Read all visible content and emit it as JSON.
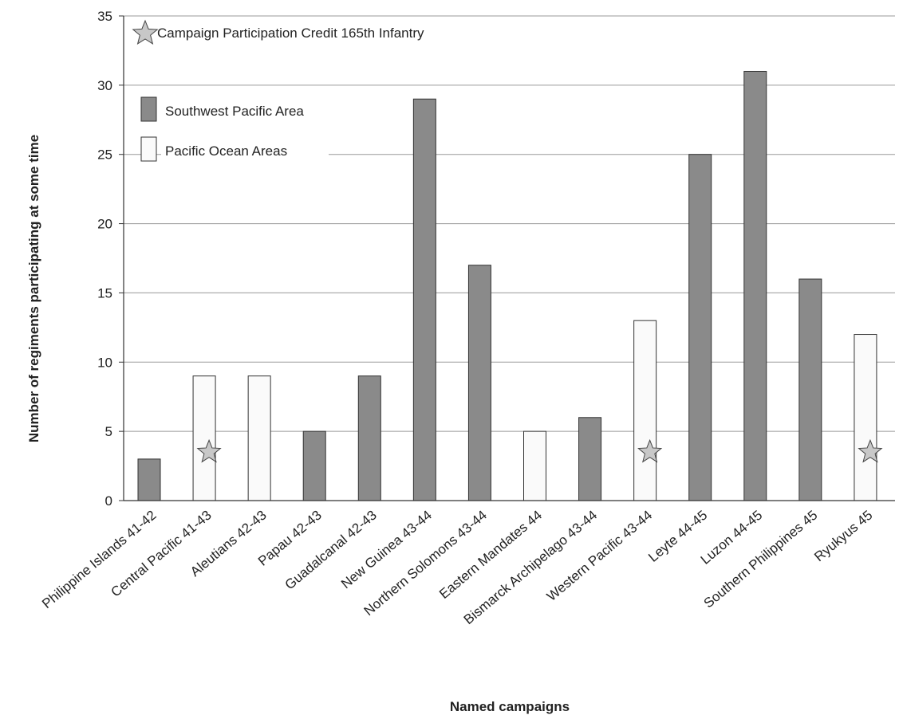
{
  "chart_data": {
    "type": "bar",
    "title": "",
    "xlabel": "Named campaigns",
    "ylabel": "Number of regiments participating at some time",
    "ylim": [
      0,
      35
    ],
    "yticks": [
      0,
      5,
      10,
      15,
      20,
      25,
      30,
      35
    ],
    "grid": true,
    "legend_position": "top-left",
    "categories": [
      "Philippine Islands 41-42",
      "Central Pacific 41-43",
      "Aleutians 42-43",
      "Papau 42-43",
      "Guadalcanal 42-43",
      "New Guinea 43-44",
      "Northern Solomons 43-44",
      "Eastern Mandates 44",
      "Bismarck Archipelago 43-44",
      "Western Pacific 43-44",
      "Leyte 44-45",
      "Luzon 44-45",
      "Southern Philippines 45",
      "Ryukyus 45"
    ],
    "values": [
      3,
      9,
      9,
      5,
      9,
      29,
      17,
      5,
      6,
      13,
      25,
      31,
      16,
      12
    ],
    "area": [
      "Southwest Pacific Area",
      "Pacific Ocean Areas",
      "Pacific Ocean Areas",
      "Southwest Pacific Area",
      "Southwest Pacific Area",
      "Southwest Pacific Area",
      "Southwest Pacific Area",
      "Pacific Ocean Areas",
      "Southwest Pacific Area",
      "Pacific Ocean Areas",
      "Southwest Pacific Area",
      "Southwest Pacific Area",
      "Southwest Pacific Area",
      "Pacific Ocean Areas"
    ],
    "legend": [
      {
        "label": "Campaign Participation Credit 165th Infantry",
        "marker": "star"
      },
      {
        "label": "Southwest Pacific Area",
        "color": "#8a8a8a"
      },
      {
        "label": "Pacific Ocean Areas",
        "color": "#fafafa"
      }
    ],
    "star_categories": [
      "Central Pacific 41-43",
      "Western Pacific 43-44",
      "Ryukyus 45"
    ],
    "colors": {
      "southwest": "#8a8a8a",
      "pacific": "#fafafa",
      "star": "#c8c8c8",
      "grid": "#9a9a9a"
    }
  }
}
